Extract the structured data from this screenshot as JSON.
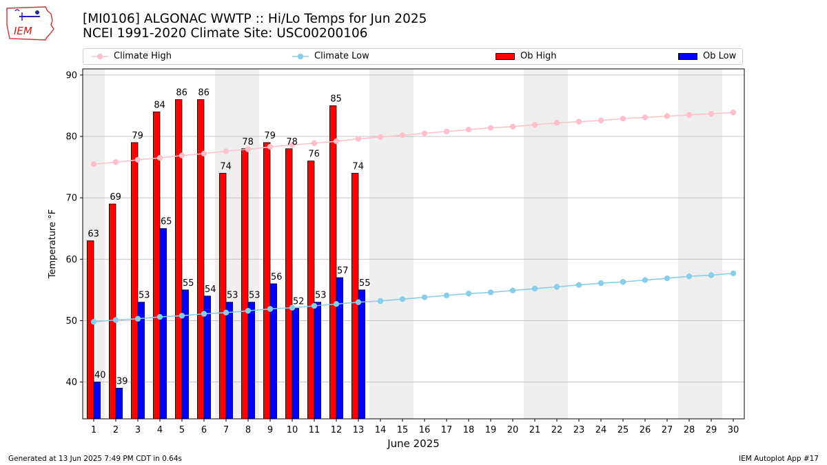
{
  "header": {
    "title_line1": "[MI0106] ALGONAC WWTP :: Hi/Lo Temps for Jun 2025",
    "title_line2": "NCEI 1991-2020 Climate Site: USC00200106"
  },
  "logo": {
    "text": "IEM"
  },
  "legend": {
    "climate_high": "Climate High",
    "climate_low": "Climate Low",
    "ob_high": "Ob High",
    "ob_low": "Ob Low"
  },
  "footer": {
    "left": "Generated at 13 Jun 2025 7:49 PM CDT in 0.64s",
    "right": "IEM Autoplot App #17"
  },
  "colors": {
    "ob_high": "#ff0000",
    "ob_low": "#0000ff",
    "climate_high": "#ffc0cb",
    "climate_low": "#87ceeb",
    "weekend_band": "#eeeeee",
    "grid": "#b0b0b0"
  },
  "chart_data": {
    "type": "bar",
    "xlabel": "June 2025",
    "ylabel": "Temperature °F",
    "ylim": [
      34,
      91
    ],
    "yticks": [
      40,
      50,
      60,
      70,
      80,
      90
    ],
    "grid": "horizontal",
    "legend_placement": "top",
    "days": [
      1,
      2,
      3,
      4,
      5,
      6,
      7,
      8,
      9,
      10,
      11,
      12,
      13,
      14,
      15,
      16,
      17,
      18,
      19,
      20,
      21,
      22,
      23,
      24,
      25,
      26,
      27,
      28,
      29,
      30
    ],
    "weekend_days": [
      1,
      7,
      8,
      14,
      15,
      21,
      22,
      28,
      29
    ],
    "series": [
      {
        "name": "Ob High",
        "kind": "bar",
        "values": [
          63,
          69,
          79,
          84,
          86,
          86,
          74,
          78,
          79,
          78,
          76,
          85,
          74
        ]
      },
      {
        "name": "Ob Low",
        "kind": "bar",
        "values": [
          40,
          39,
          53,
          65,
          55,
          54,
          53,
          53,
          56,
          52,
          53,
          57,
          55
        ]
      },
      {
        "name": "Climate High",
        "kind": "line",
        "values": [
          75.5,
          75.8,
          76.2,
          76.5,
          76.9,
          77.2,
          77.6,
          77.9,
          78.3,
          78.6,
          78.9,
          79.2,
          79.6,
          79.9,
          80.2,
          80.5,
          80.8,
          81.1,
          81.4,
          81.6,
          81.9,
          82.2,
          82.4,
          82.6,
          82.9,
          83.1,
          83.3,
          83.5,
          83.7,
          83.9
        ]
      },
      {
        "name": "Climate Low",
        "kind": "line",
        "values": [
          49.8,
          50.1,
          50.3,
          50.6,
          50.8,
          51.1,
          51.3,
          51.6,
          51.9,
          52.1,
          52.4,
          52.7,
          53.0,
          53.2,
          53.5,
          53.8,
          54.1,
          54.4,
          54.6,
          54.9,
          55.2,
          55.5,
          55.8,
          56.1,
          56.3,
          56.6,
          56.9,
          57.2,
          57.4,
          57.7
        ]
      }
    ]
  }
}
